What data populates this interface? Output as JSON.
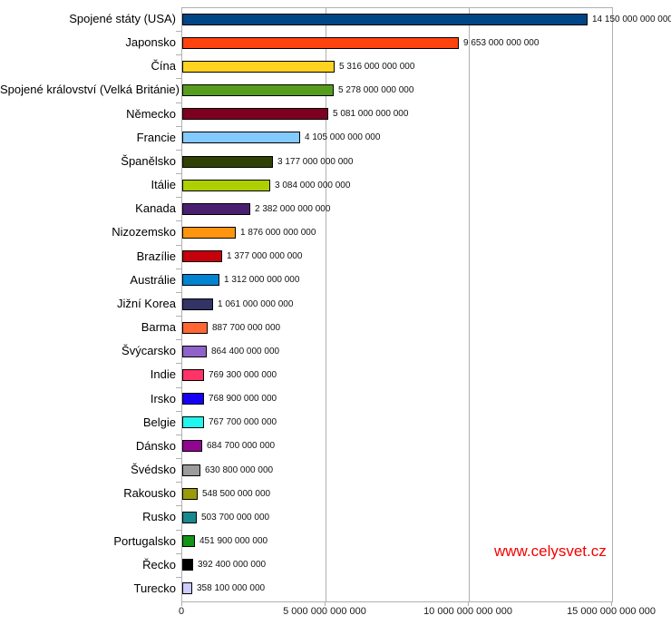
{
  "chart_data": {
    "type": "bar",
    "orientation": "horizontal",
    "title": "",
    "xlabel": "",
    "ylabel": "",
    "grid": "vertical-gridlines",
    "legend_position": "none",
    "xlim": [
      0,
      15000000000000
    ],
    "categories": [
      "Spojené státy (USA)",
      "Japonsko",
      "Čína",
      "Spojené království (Velká Británie)",
      "Německo",
      "Francie",
      "Španělsko",
      "Itálie",
      "Kanada",
      "Nizozemsko",
      "Brazílie",
      "Austrálie",
      "Jižní Korea",
      "Barma",
      "Švýcarsko",
      "Indie",
      "Irsko",
      "Belgie",
      "Dánsko",
      "Švédsko",
      "Rakousko",
      "Rusko",
      "Portugalsko",
      "Řecko",
      "Turecko"
    ],
    "values": [
      14150000000000,
      9653000000000,
      5316000000000,
      5278000000000,
      5081000000000,
      4105000000000,
      3177000000000,
      3084000000000,
      2382000000000,
      1876000000000,
      1377000000000,
      1312000000000,
      1061000000000,
      887700000000,
      864400000000,
      769300000000,
      768900000000,
      767700000000,
      684700000000,
      630800000000,
      548500000000,
      503700000000,
      451900000000,
      392400000000,
      358100000000
    ],
    "value_labels": [
      "14 150 000 000 000",
      "9 653 000 000 000",
      "5 316 000 000 000",
      "5 278 000 000 000",
      "5 081 000 000 000",
      "4 105 000 000 000",
      "3 177 000 000 000",
      "3 084 000 000 000",
      "2 382 000 000 000",
      "1 876 000 000 000",
      "1 377 000 000 000",
      "1 312 000 000 000",
      "1 061 000 000 000",
      "887 700 000 000",
      "864 400 000 000",
      "769 300 000 000",
      "768 900 000 000",
      "767 700 000 000",
      "684 700 000 000",
      "630 800 000 000",
      "548 500 000 000",
      "503 700 000 000",
      "451 900 000 000",
      "392 400 000 000",
      "358 100 000 000"
    ],
    "bar_colors": [
      "#004586",
      "#ff420e",
      "#ffd320",
      "#579d1c",
      "#7e0021",
      "#83caff",
      "#314004",
      "#aecf00",
      "#4b1f6f",
      "#ff950e",
      "#c5000b",
      "#0084d1",
      "#333366",
      "#ff6633",
      "#8f62c9",
      "#ff3366",
      "#1500f5",
      "#22f5ef",
      "#910591",
      "#9c9c9c",
      "#9a9a0b",
      "#17898e",
      "#129417",
      "#000000",
      "#ccccff"
    ],
    "x_ticks": [
      {
        "value": 0,
        "label": "0"
      },
      {
        "value": 5000000000000,
        "label": "5 000 000 000 000"
      },
      {
        "value": 10000000000000,
        "label": "10 000 000 000 000"
      },
      {
        "value": 15000000000000,
        "label": "15 000 000 000 000"
      }
    ]
  },
  "watermark": {
    "text": "www.celysvet.cz",
    "color": "#f50000"
  },
  "style_colors": {
    "axis_gray": "#b0b0b0",
    "bar_border": "#000000",
    "background": "#ffffff",
    "label_text": "#000000"
  }
}
